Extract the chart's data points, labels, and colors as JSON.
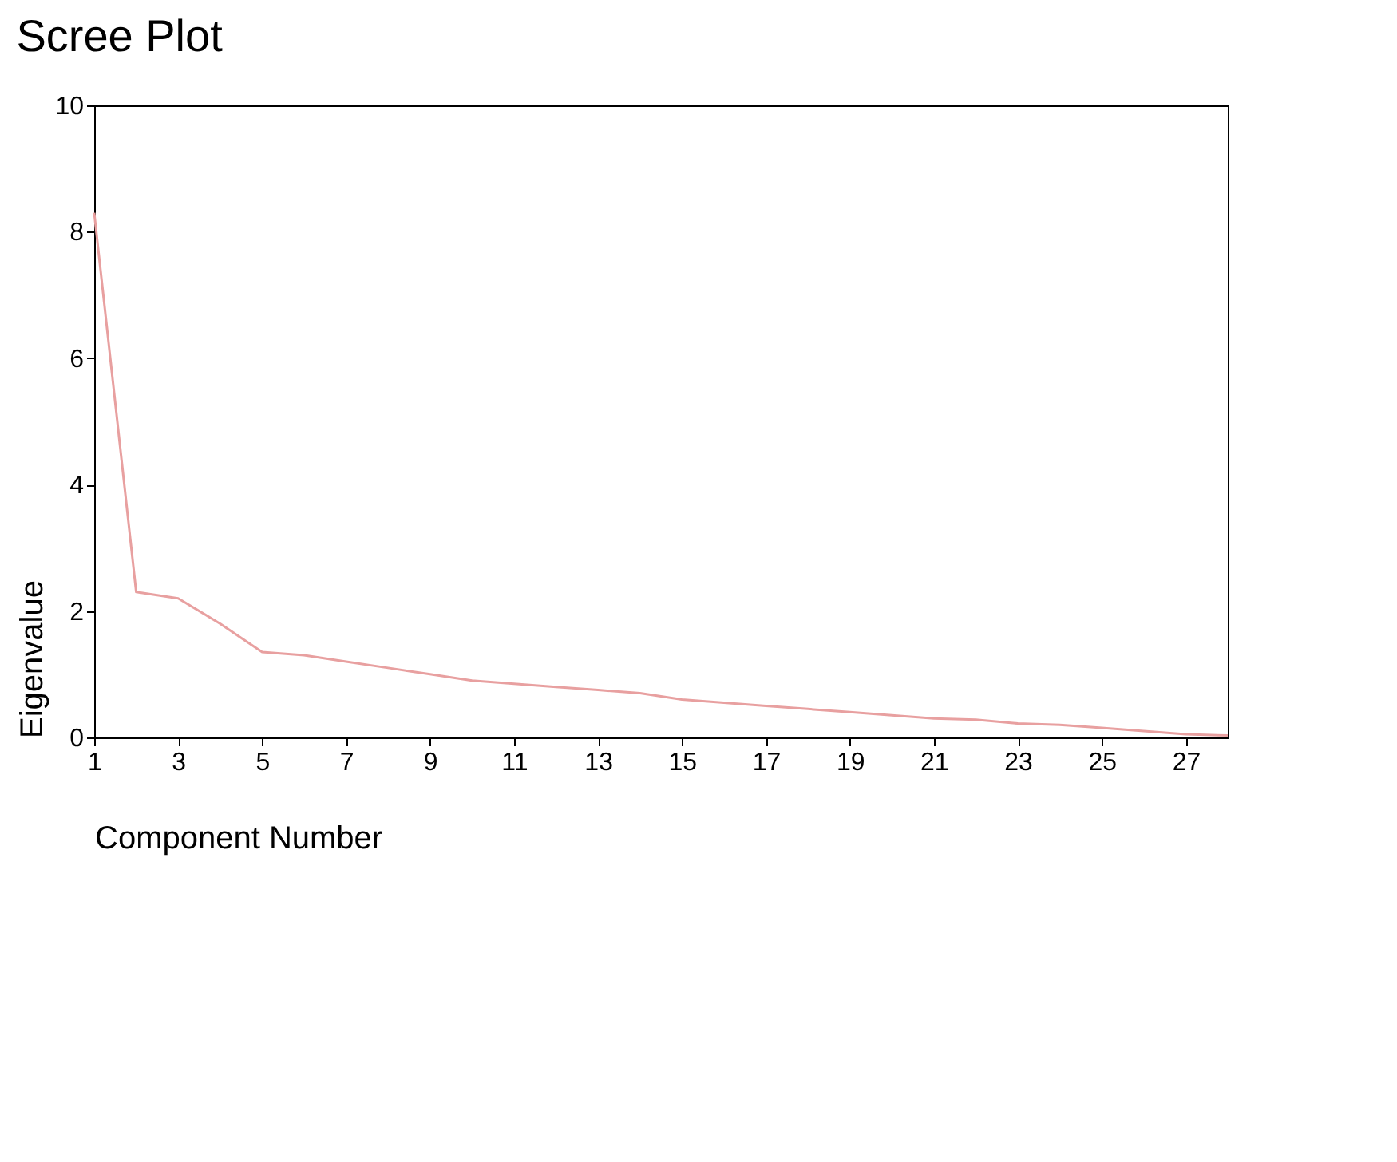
{
  "chart_data": {
    "type": "line",
    "title": "Scree Plot",
    "xlabel": "Component Number",
    "ylabel": "Eigenvalue",
    "x": [
      1,
      2,
      3,
      4,
      5,
      6,
      7,
      8,
      9,
      10,
      11,
      12,
      13,
      14,
      15,
      16,
      17,
      18,
      19,
      20,
      21,
      22,
      23,
      24,
      25,
      26,
      27,
      28
    ],
    "series": [
      {
        "color": "#e8a0a0",
        "values": [
          8.3,
          2.3,
          2.2,
          1.8,
          1.35,
          1.3,
          1.2,
          1.1,
          1.0,
          0.9,
          0.85,
          0.8,
          0.75,
          0.7,
          0.6,
          0.55,
          0.5,
          0.45,
          0.4,
          0.35,
          0.3,
          0.28,
          0.22,
          0.2,
          0.15,
          0.1,
          0.05,
          0.03
        ]
      }
    ],
    "xlim": [
      1,
      28
    ],
    "xticks": [
      1,
      3,
      5,
      7,
      9,
      11,
      13,
      15,
      17,
      19,
      21,
      23,
      25,
      27
    ],
    "ylim": [
      0,
      10
    ],
    "yticks": [
      0,
      2,
      4,
      6,
      8,
      10
    ],
    "grid": false,
    "marker": "none",
    "line_style": "solid"
  }
}
